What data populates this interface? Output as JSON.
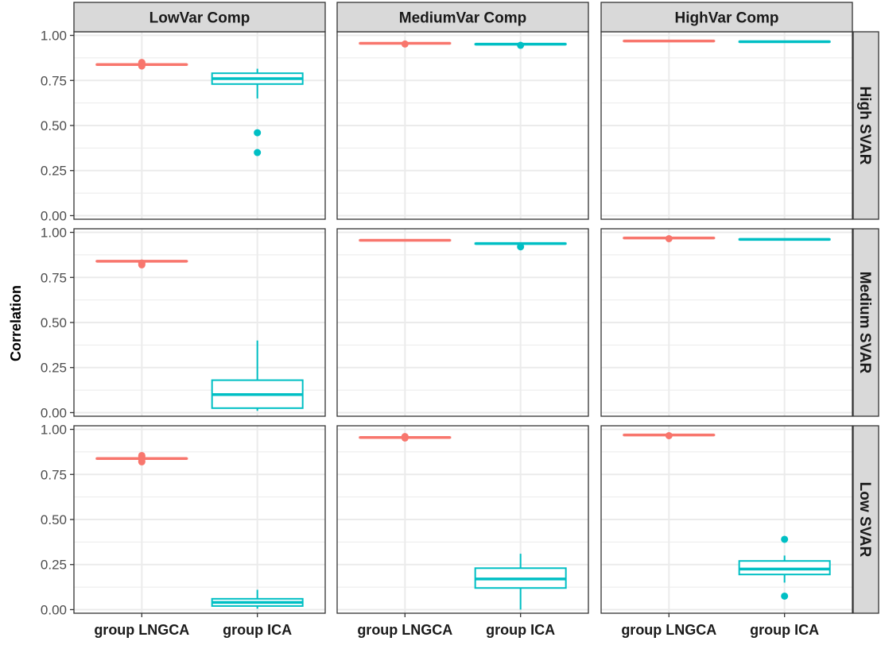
{
  "chart_data": {
    "type": "boxplot",
    "ylabel": "Correlation",
    "xlabel": "",
    "ylim": [
      -0.02,
      1.02
    ],
    "yticks": [
      "0.00",
      "0.25",
      "0.50",
      "0.75",
      "1.00"
    ],
    "ytick_values": [
      0,
      0.25,
      0.5,
      0.75,
      1.0
    ],
    "grid": true,
    "colors": {
      "group LNGCA": "#F8766D",
      "group ICA": "#00BFC4",
      "strip_bg": "#D9D9D9",
      "grid": "#EBEBEB"
    },
    "categories": [
      "group LNGCA",
      "group ICA"
    ],
    "col_facets": [
      "LowVar Comp",
      "MediumVar Comp",
      "HighVar Comp"
    ],
    "row_facets": [
      "High SVAR",
      "Medium SVAR",
      "Low SVAR"
    ],
    "panels": [
      {
        "row": 0,
        "col": 0,
        "boxes": [
          {
            "category": "group LNGCA",
            "lower_whisker": 0.835,
            "q1": 0.837,
            "median": 0.838,
            "q3": 0.839,
            "upper_whisker": 0.841,
            "outliers": [
              0.83,
              0.845,
              0.85
            ]
          },
          {
            "category": "group ICA",
            "lower_whisker": 0.65,
            "q1": 0.73,
            "median": 0.76,
            "q3": 0.79,
            "upper_whisker": 0.815,
            "outliers": [
              0.46,
              0.35
            ]
          }
        ]
      },
      {
        "row": 0,
        "col": 1,
        "boxes": [
          {
            "category": "group LNGCA",
            "lower_whisker": 0.954,
            "q1": 0.955,
            "median": 0.956,
            "q3": 0.957,
            "upper_whisker": 0.958,
            "outliers": [
              0.952
            ]
          },
          {
            "category": "group ICA",
            "lower_whisker": 0.948,
            "q1": 0.95,
            "median": 0.951,
            "q3": 0.952,
            "upper_whisker": 0.953,
            "outliers": [
              0.945
            ]
          }
        ]
      },
      {
        "row": 0,
        "col": 2,
        "boxes": [
          {
            "category": "group LNGCA",
            "lower_whisker": 0.967,
            "q1": 0.968,
            "median": 0.969,
            "q3": 0.97,
            "upper_whisker": 0.971,
            "outliers": []
          },
          {
            "category": "group ICA",
            "lower_whisker": 0.963,
            "q1": 0.964,
            "median": 0.965,
            "q3": 0.966,
            "upper_whisker": 0.967,
            "outliers": []
          }
        ]
      },
      {
        "row": 1,
        "col": 0,
        "boxes": [
          {
            "category": "group LNGCA",
            "lower_whisker": 0.838,
            "q1": 0.839,
            "median": 0.84,
            "q3": 0.841,
            "upper_whisker": 0.842,
            "outliers": [
              0.82,
              0.825,
              0.83
            ]
          },
          {
            "category": "group ICA",
            "lower_whisker": 0.01,
            "q1": 0.025,
            "median": 0.1,
            "q3": 0.18,
            "upper_whisker": 0.4,
            "outliers": []
          }
        ]
      },
      {
        "row": 1,
        "col": 1,
        "boxes": [
          {
            "category": "group LNGCA",
            "lower_whisker": 0.954,
            "q1": 0.955,
            "median": 0.956,
            "q3": 0.957,
            "upper_whisker": 0.958,
            "outliers": []
          },
          {
            "category": "group ICA",
            "lower_whisker": 0.936,
            "q1": 0.937,
            "median": 0.938,
            "q3": 0.939,
            "upper_whisker": 0.94,
            "outliers": [
              0.92
            ]
          }
        ]
      },
      {
        "row": 1,
        "col": 2,
        "boxes": [
          {
            "category": "group LNGCA",
            "lower_whisker": 0.967,
            "q1": 0.968,
            "median": 0.969,
            "q3": 0.97,
            "upper_whisker": 0.971,
            "outliers": [
              0.965
            ]
          },
          {
            "category": "group ICA",
            "lower_whisker": 0.959,
            "q1": 0.96,
            "median": 0.961,
            "q3": 0.962,
            "upper_whisker": 0.963,
            "outliers": []
          }
        ]
      },
      {
        "row": 2,
        "col": 0,
        "boxes": [
          {
            "category": "group LNGCA",
            "lower_whisker": 0.835,
            "q1": 0.837,
            "median": 0.838,
            "q3": 0.839,
            "upper_whisker": 0.841,
            "outliers": [
              0.82,
              0.825,
              0.85,
              0.855
            ]
          },
          {
            "category": "group ICA",
            "lower_whisker": 0.005,
            "q1": 0.02,
            "median": 0.04,
            "q3": 0.06,
            "upper_whisker": 0.11,
            "outliers": []
          }
        ]
      },
      {
        "row": 2,
        "col": 1,
        "boxes": [
          {
            "category": "group LNGCA",
            "lower_whisker": 0.953,
            "q1": 0.954,
            "median": 0.955,
            "q3": 0.956,
            "upper_whisker": 0.957,
            "outliers": [
              0.952,
              0.96
            ]
          },
          {
            "category": "group ICA",
            "lower_whisker": 0.0,
            "q1": 0.12,
            "median": 0.17,
            "q3": 0.23,
            "upper_whisker": 0.31,
            "outliers": []
          }
        ]
      },
      {
        "row": 2,
        "col": 2,
        "boxes": [
          {
            "category": "group LNGCA",
            "lower_whisker": 0.967,
            "q1": 0.968,
            "median": 0.969,
            "q3": 0.97,
            "upper_whisker": 0.971,
            "outliers": [
              0.965
            ]
          },
          {
            "category": "group ICA",
            "lower_whisker": 0.15,
            "q1": 0.195,
            "median": 0.225,
            "q3": 0.27,
            "upper_whisker": 0.3,
            "outliers": [
              0.39,
              0.075
            ]
          }
        ]
      }
    ]
  }
}
